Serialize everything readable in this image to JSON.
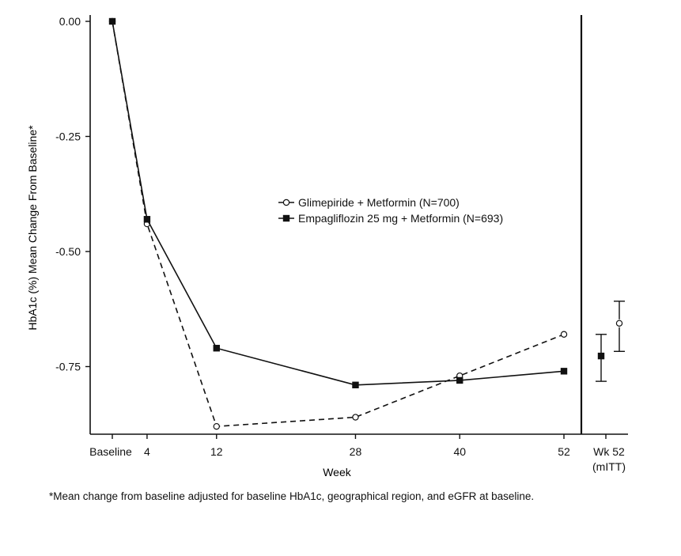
{
  "chart_data": {
    "type": "line",
    "ylabel": "HbA1c (%) Mean Change From Baseline*",
    "xlabel": "Week",
    "ylim": [
      -0.9,
      0.0
    ],
    "y_ticks": [
      0.0,
      -0.25,
      -0.5,
      -0.75
    ],
    "y_tick_labels": [
      "0.00",
      "-0.25",
      "-0.50",
      "-0.75"
    ],
    "x_ticks": [
      0,
      4,
      12,
      28,
      40,
      52
    ],
    "x_tick_labels": [
      "Baseline",
      "4",
      "12",
      "28",
      "40",
      "52"
    ],
    "endpoint_tick_label": [
      "Wk 52",
      "(mITT)"
    ],
    "legend_position": "center-right",
    "series": [
      {
        "name": "Glimepiride + Metformin (N=700)",
        "marker": "open-circle",
        "line": "dashed",
        "x": [
          0,
          4,
          12,
          28,
          40,
          52
        ],
        "y": [
          0.0,
          -0.44,
          -0.88,
          -0.86,
          -0.77,
          -0.68
        ],
        "endpoint": {
          "y": -0.656,
          "ci": [
            -0.717,
            -0.608
          ]
        }
      },
      {
        "name": "Empagliflozin 25 mg + Metformin (N=693)",
        "marker": "filled-square",
        "line": "solid",
        "x": [
          0,
          4,
          12,
          28,
          40,
          52
        ],
        "y": [
          0.0,
          -0.43,
          -0.71,
          -0.79,
          -0.78,
          -0.76
        ],
        "endpoint": {
          "y": -0.727,
          "ci": [
            -0.782,
            -0.68
          ]
        }
      }
    ],
    "footnote": "*Mean change from baseline adjusted for baseline HbA1c, geographical region, and eGFR at baseline."
  }
}
